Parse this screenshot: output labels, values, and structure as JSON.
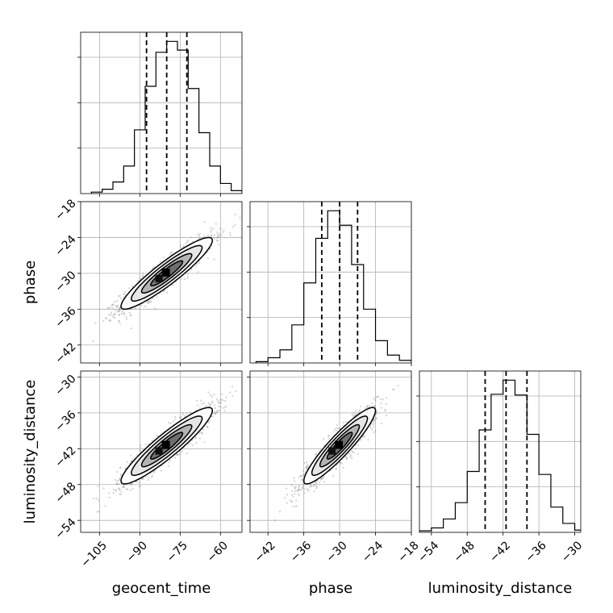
{
  "chart_data": {
    "type": "corner",
    "parameters": [
      "geocent_time",
      "phase",
      "luminosity_distance"
    ],
    "xlabels": [
      "geocent_time",
      "phase",
      "luminosity_distance"
    ],
    "ylabels": [
      "",
      "phase",
      "luminosity_distance"
    ],
    "ranges": [
      [
        -112,
        -52
      ],
      [
        -45,
        -18
      ],
      [
        -56,
        -29
      ]
    ],
    "ticks": [
      [
        -105,
        -90,
        -75,
        -60
      ],
      [
        -42,
        -36,
        -30,
        -24,
        -18
      ],
      [
        -54,
        -48,
        -42,
        -36,
        -30
      ]
    ],
    "tick_labels": [
      [
        "−105",
        "−90",
        "−75",
        "−60"
      ],
      [
        "−42",
        "−36",
        "−30",
        "−24",
        "−18"
      ],
      [
        "−54",
        "−48",
        "−42",
        "−36",
        "−30"
      ]
    ],
    "grid": true,
    "quantiles": [
      [
        -87.5,
        -80.0,
        -72.5
      ],
      [
        -33.0,
        -30.0,
        -27.0
      ],
      [
        -45.0,
        -41.5,
        -38.0
      ]
    ],
    "histograms": [
      {
        "param": "geocent_time",
        "bin_edges": [
          -108,
          -104,
          -100,
          -96,
          -92,
          -88,
          -84,
          -80,
          -76,
          -72,
          -68,
          -64,
          -60,
          -56,
          -52
        ],
        "counts": [
          2,
          6,
          16,
          38,
          88,
          148,
          195,
          210,
          198,
          145,
          84,
          38,
          14,
          4
        ]
      },
      {
        "param": "phase",
        "bin_edges": [
          -44,
          -42,
          -40,
          -38,
          -36,
          -34,
          -32,
          -30,
          -28,
          -26,
          -24,
          -22,
          -20,
          -18
        ],
        "counts": [
          2,
          8,
          20,
          58,
          122,
          190,
          232,
          210,
          150,
          82,
          34,
          12,
          4
        ]
      },
      {
        "param": "luminosity_distance",
        "bin_edges": [
          -56,
          -54,
          -52,
          -50,
          -48,
          -46,
          -44,
          -42,
          -40,
          -38,
          -36,
          -34,
          -32,
          -30,
          -28
        ],
        "counts": [
          2,
          6,
          18,
          40,
          82,
          138,
          186,
          205,
          185,
          132,
          78,
          34,
          12,
          3
        ]
      }
    ],
    "pairs": [
      {
        "x": "geocent_time",
        "y": "phase",
        "mean": [
          -80,
          -30
        ],
        "sd": [
          8.5,
          3.0
        ],
        "corr": 0.92
      },
      {
        "x": "geocent_time",
        "y": "luminosity_distance",
        "mean": [
          -80,
          -41.5
        ],
        "sd": [
          8.5,
          3.2
        ],
        "corr": 0.92
      },
      {
        "x": "phase",
        "y": "luminosity_distance",
        "mean": [
          -30,
          -41.5
        ],
        "sd": [
          3.0,
          3.2
        ],
        "corr": 0.92
      }
    ]
  }
}
